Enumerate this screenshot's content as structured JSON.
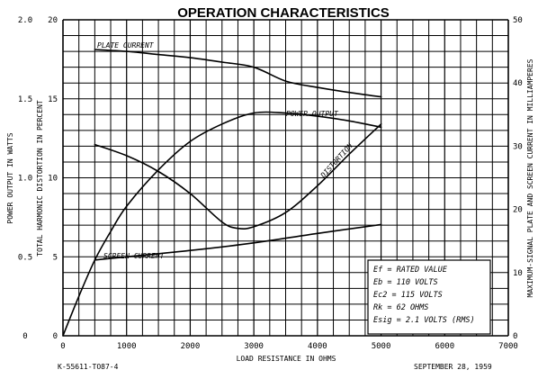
{
  "chart_data": {
    "type": "line",
    "title": "OPERATION CHARACTERISTICS",
    "xlabel": "LOAD RESISTANCE IN OHMS",
    "ylabel_left_outer": "POWER OUTPUT IN WATTS",
    "ylabel_left_inner": "TOTAL HARMONIC DISTORTION IN PERCENT",
    "ylabel_right": "MAXIMUM-SIGNAL PLATE AND SCREEN CURRENT IN MILLIAMPERES",
    "xlim": [
      0,
      7000
    ],
    "ylim_power": [
      0,
      2.0
    ],
    "ylim_distortion": [
      0,
      20
    ],
    "ylim_current": [
      0,
      50
    ],
    "x_ticks": [
      "0",
      "1000",
      "2000",
      "3000",
      "4000",
      "5000",
      "6000",
      "7000"
    ],
    "power_ticks": [
      "0",
      "0.5",
      "1.0",
      "1.5",
      "2.0"
    ],
    "distortion_ticks": [
      "0",
      "5",
      "10",
      "15",
      "20"
    ],
    "current_ticks": [
      "0",
      "10",
      "20",
      "30",
      "40",
      "50"
    ],
    "grid": true,
    "series": [
      {
        "name": "PLATE CURRENT",
        "axis": "current",
        "x": [
          500,
          1000,
          1500,
          2000,
          2500,
          3000,
          3500,
          4000,
          4500,
          5000
        ],
        "y": [
          45.3,
          45.0,
          44.5,
          44.0,
          43.3,
          42.5,
          40.3,
          39.3,
          38.5,
          37.8
        ]
      },
      {
        "name": "POWER OUTPUT",
        "axis": "power",
        "x": [
          0,
          250,
          500,
          750,
          1000,
          1500,
          2000,
          2500,
          3000,
          3500,
          4000,
          4500,
          5000
        ],
        "y": [
          0,
          0.25,
          0.48,
          0.66,
          0.82,
          1.05,
          1.23,
          1.34,
          1.41,
          1.41,
          1.39,
          1.36,
          1.32
        ]
      },
      {
        "name": "DISTORTION",
        "axis": "distortion",
        "x": [
          500,
          1000,
          1500,
          2000,
          2500,
          2750,
          3000,
          3500,
          4000,
          4500,
          5000
        ],
        "y": [
          12.1,
          11.4,
          10.4,
          9.0,
          7.2,
          6.8,
          6.9,
          7.8,
          9.5,
          11.5,
          13.4
        ]
      },
      {
        "name": "SCREEN CURRENT",
        "axis": "current",
        "x": [
          500,
          1000,
          2000,
          3000,
          4000,
          5000
        ],
        "y": [
          12.0,
          12.5,
          13.5,
          14.7,
          16.2,
          17.6
        ]
      }
    ],
    "conditions": [
      "Ef = RATED VALUE",
      "Eb = 110 VOLTS",
      "Ec2 = 115 VOLTS",
      "Rk = 62 OHMS",
      "Esig = 2.1 VOLTS (RMS)"
    ]
  },
  "footer": {
    "left": "K-55611-TO87-4",
    "right": "SEPTEMBER 28, 1959"
  }
}
